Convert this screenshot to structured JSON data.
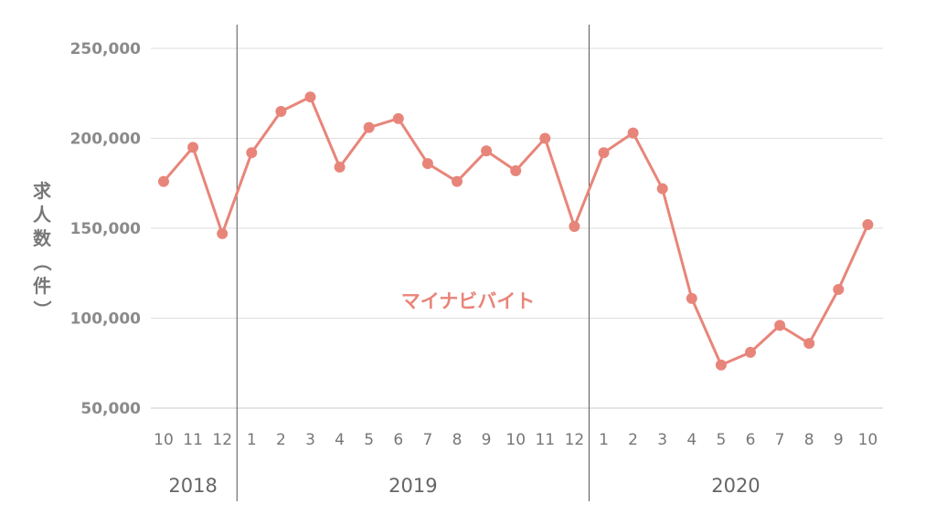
{
  "chart_data": {
    "type": "line",
    "ylabel": "求人数（件）",
    "ylim": [
      50000,
      250000
    ],
    "yticks": [
      "250,000",
      "200,000",
      "150,000",
      "100,000",
      "50,000"
    ],
    "ytick_values": [
      250000,
      200000,
      150000,
      100000,
      50000
    ],
    "grid": "horizontal",
    "x": [
      "10",
      "11",
      "12",
      "1",
      "2",
      "3",
      "4",
      "5",
      "6",
      "7",
      "8",
      "9",
      "10",
      "11",
      "12",
      "1",
      "2",
      "3",
      "4",
      "5",
      "6",
      "7",
      "8",
      "9",
      "10"
    ],
    "year_labels": [
      {
        "label": "2018",
        "span": [
          "10",
          "12"
        ]
      },
      {
        "label": "2019",
        "span": [
          "1",
          "12"
        ]
      },
      {
        "label": "2020",
        "span": [
          "1",
          "10"
        ]
      }
    ],
    "series": [
      {
        "name": "マイナビバイト",
        "color": "#e8857a",
        "values": [
          176000,
          195000,
          147000,
          192000,
          215000,
          223000,
          184000,
          206000,
          211000,
          186000,
          176000,
          193000,
          182000,
          200000,
          151000,
          192000,
          203000,
          172000,
          111000,
          74000,
          81000,
          96000,
          86000,
          116000,
          152000
        ]
      }
    ]
  }
}
